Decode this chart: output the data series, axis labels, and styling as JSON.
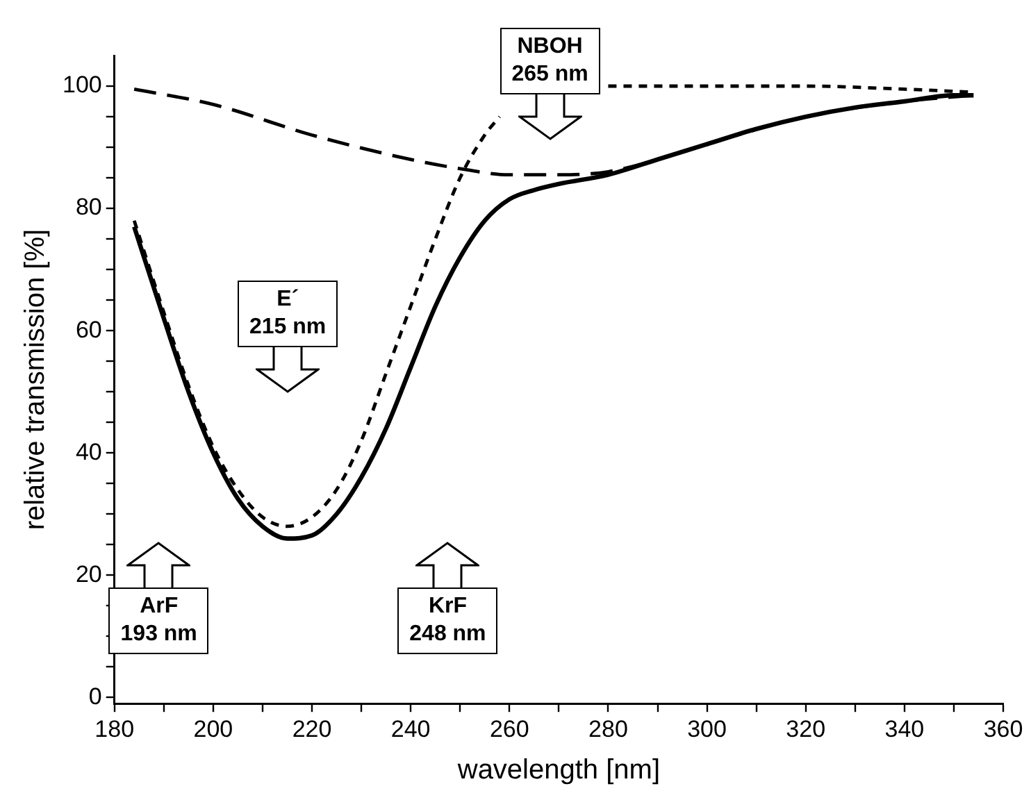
{
  "chart_data": {
    "type": "line",
    "xlabel": "wavelength [nm]",
    "ylabel": "relative transmission [%]",
    "xlim": [
      180,
      360
    ],
    "xticks": [
      180,
      {
        "value": 190,
        "label": null
      },
      200,
      {
        "value": 210,
        "label": null
      },
      220,
      {
        "value": 230,
        "label": null
      },
      240,
      {
        "value": 250,
        "label": null
      },
      260,
      {
        "value": 270,
        "label": null
      },
      280,
      {
        "value": 290,
        "label": null
      },
      300,
      {
        "value": 310,
        "label": null
      },
      320,
      {
        "value": 330,
        "label": null
      },
      340,
      {
        "value": 350,
        "label": null
      },
      360
    ],
    "ylim": [
      -1,
      105
    ],
    "yticks": [
      0,
      {
        "value": 5,
        "label": null
      },
      {
        "value": 10,
        "label": null
      },
      {
        "value": 15,
        "label": null
      },
      20,
      {
        "value": 25,
        "label": null
      },
      {
        "value": 30,
        "label": null
      },
      {
        "value": 35,
        "label": null
      },
      40,
      {
        "value": 45,
        "label": null
      },
      {
        "value": 50,
        "label": null
      },
      {
        "value": 55,
        "label": null
      },
      60,
      {
        "value": 65,
        "label": null
      },
      {
        "value": 70,
        "label": null
      },
      {
        "value": 75,
        "label": null
      },
      80,
      {
        "value": 85,
        "label": null
      },
      {
        "value": 90,
        "label": null
      },
      {
        "value": 95,
        "label": null
      },
      100
    ],
    "grid": false,
    "legend": false,
    "marker": "none",
    "series": [
      {
        "color": "#000000",
        "line_style": "solid",
        "x": [
          184,
          190,
          195,
          200,
          205,
          210,
          215,
          220,
          225,
          230,
          235,
          240,
          245,
          250,
          255,
          260,
          265,
          270,
          280,
          290,
          300,
          310,
          320,
          330,
          340,
          350,
          354
        ],
        "values": [
          77,
          62,
          50,
          40,
          32.5,
          28,
          26,
          26.5,
          30,
          36,
          44,
          54,
          64,
          72,
          78,
          81.5,
          83,
          84,
          85.5,
          88,
          90.5,
          93,
          95,
          96.5,
          97.5,
          98.5,
          98.5
        ]
      },
      {
        "color": "#000000",
        "line_style": "dashed",
        "x": [
          184,
          190,
          195,
          200,
          205,
          210,
          215,
          220,
          225,
          230,
          235,
          240,
          245,
          250,
          255,
          258,
          262,
          265,
          280,
          300,
          320,
          340,
          354
        ],
        "values": [
          78,
          63,
          51,
          41,
          34,
          29.5,
          28,
          29.5,
          34,
          42,
          53,
          64,
          75,
          85,
          92,
          95,
          null,
          null,
          100,
          100,
          100,
          99.5,
          99
        ]
      },
      {
        "color": "#000000",
        "line_style": "dashed",
        "x": [
          184,
          200,
          220,
          240,
          250,
          260,
          270,
          280,
          290,
          300,
          320,
          340,
          354
        ],
        "values": [
          99.5,
          97,
          92,
          88,
          86.5,
          85.5,
          85.5,
          86,
          88,
          90.5,
          95,
          97.5,
          98.5
        ]
      }
    ],
    "annotations": [
      "ArF\n193 nm",
      "KrF\n248 nm",
      "E´\n215 nm",
      "NBOH\n265 nm"
    ]
  }
}
